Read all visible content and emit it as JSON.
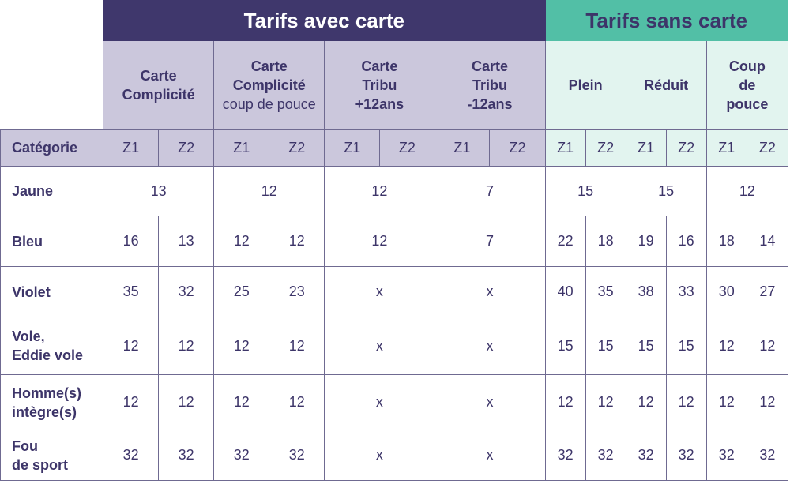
{
  "groups": {
    "avec": "Tarifs avec carte",
    "sans": "Tarifs sans carte"
  },
  "subheaders": {
    "complicite": "Carte Complicité",
    "complicite_pouce_1": "Carte",
    "complicite_pouce_2": "Complicité",
    "complicite_pouce_3": "coup de pouce",
    "tribu12plus": "Carte Tribu +12ans",
    "tribu12moins": "Carte Tribu -12ans",
    "plein": "Plein",
    "reduit": "Réduit",
    "coup_de_pouce": "Coup de pouce"
  },
  "category_header": "Catégorie",
  "zones": {
    "z1": "Z1",
    "z2": "Z2"
  },
  "rows": [
    {
      "label": "Jaune",
      "complicite": "13",
      "complicite_pouce": "12",
      "tribu12plus": "12",
      "tribu12moins": "7",
      "plein": "15",
      "reduit": "15",
      "coup_de_pouce": "12"
    },
    {
      "label": "Bleu",
      "complicite": [
        "16",
        "13"
      ],
      "complicite_pouce": [
        "12",
        "12"
      ],
      "tribu12plus": "12",
      "tribu12moins": "7",
      "plein": [
        "22",
        "18"
      ],
      "reduit": [
        "19",
        "16"
      ],
      "coup_de_pouce": [
        "18",
        "14"
      ]
    },
    {
      "label": "Violet",
      "complicite": [
        "35",
        "32"
      ],
      "complicite_pouce": [
        "25",
        "23"
      ],
      "tribu12plus": "x",
      "tribu12moins": "x",
      "plein": [
        "40",
        "35"
      ],
      "reduit": [
        "38",
        "33"
      ],
      "coup_de_pouce": [
        "30",
        "27"
      ]
    },
    {
      "label_1": "Vole,",
      "label_2": "Eddie vole",
      "complicite": [
        "12",
        "12"
      ],
      "complicite_pouce": [
        "12",
        "12"
      ],
      "tribu12plus": "x",
      "tribu12moins": "x",
      "plein": [
        "15",
        "15"
      ],
      "reduit": [
        "15",
        "15"
      ],
      "coup_de_pouce": [
        "12",
        "12"
      ]
    },
    {
      "label_1": "Homme(s)",
      "label_2": "intègre(s)",
      "complicite": [
        "12",
        "12"
      ],
      "complicite_pouce": [
        "12",
        "12"
      ],
      "tribu12plus": "x",
      "tribu12moins": "x",
      "plein": [
        "12",
        "12"
      ],
      "reduit": [
        "12",
        "12"
      ],
      "coup_de_pouce": [
        "12",
        "12"
      ]
    },
    {
      "label_1": "Fou",
      "label_2": "de sport",
      "complicite": [
        "32",
        "32"
      ],
      "complicite_pouce": [
        "32",
        "32"
      ],
      "tribu12plus": "x",
      "tribu12moins": "x",
      "plein": [
        "32",
        "32"
      ],
      "reduit": [
        "32",
        "32"
      ],
      "coup_de_pouce": [
        "32",
        "32"
      ]
    }
  ],
  "colors": {
    "avec_header_bg": "#3f376c",
    "avec_sub_bg": "#cbc7dc",
    "sans_header_bg": "#52bfa6",
    "sans_sub_bg": "#e2f4ef",
    "text": "#3d3569",
    "border": "#6f6a91"
  }
}
